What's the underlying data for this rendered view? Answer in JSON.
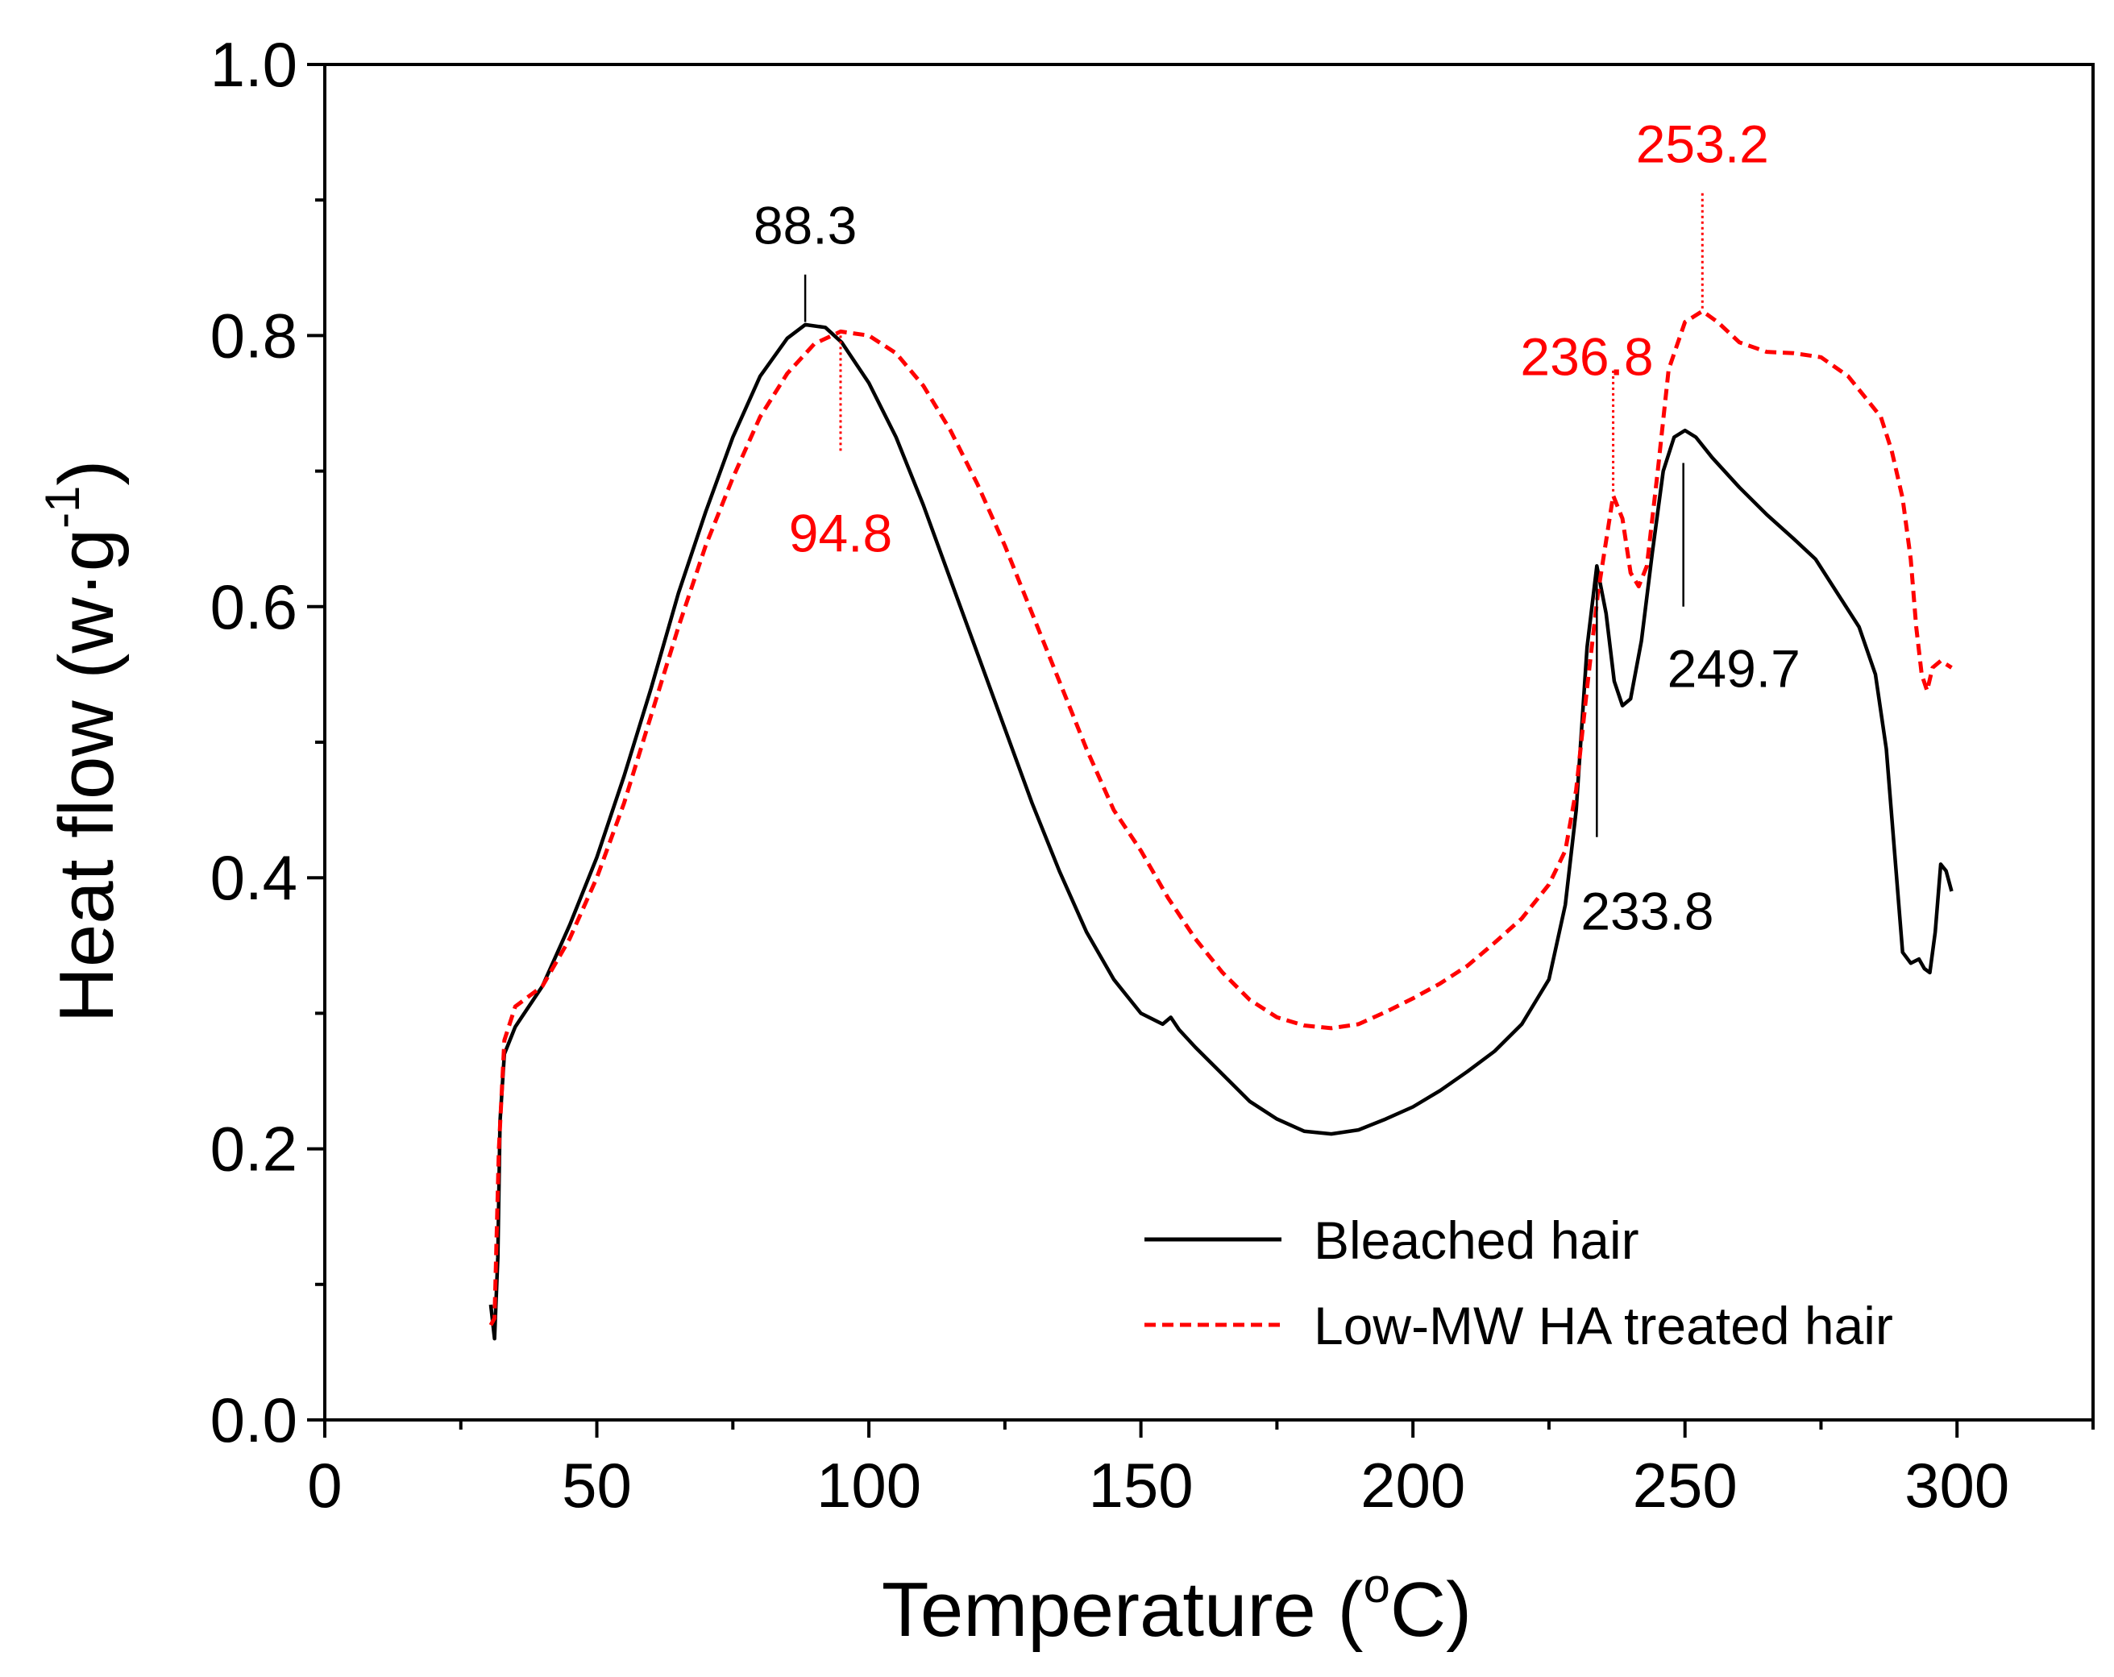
{
  "chart_data": {
    "type": "line",
    "title": "",
    "xlabel": "Temperature (",
    "xlabel_super": "o",
    "xlabel_tail": "C)",
    "ylabel": "Heat flow (w·g",
    "ylabel_super": "-1",
    "ylabel_tail": ")",
    "xlim": [
      0,
      325
    ],
    "ylim": [
      0,
      1.0
    ],
    "xticks": [
      0,
      50,
      100,
      150,
      200,
      250,
      300
    ],
    "xtick_labels": [
      "0",
      "50",
      "100",
      "150",
      "200",
      "250",
      "300"
    ],
    "yticks": [
      0,
      0.2,
      0.4,
      0.6,
      0.8,
      1.0
    ],
    "ytick_labels": [
      "0.0",
      "0.2",
      "0.4",
      "0.6",
      "0.8",
      "1.0"
    ],
    "grid": false,
    "legend_position": "bottom-right",
    "series": [
      {
        "name": "Bleached hair",
        "color": "#000000",
        "style": "solid",
        "points": [
          [
            30.5,
            0.085
          ],
          [
            31.2,
            0.06
          ],
          [
            31.8,
            0.12
          ],
          [
            32.2,
            0.22
          ],
          [
            33.0,
            0.27
          ],
          [
            35,
            0.29
          ],
          [
            40,
            0.32
          ],
          [
            45,
            0.365
          ],
          [
            50,
            0.415
          ],
          [
            55,
            0.475
          ],
          [
            60,
            0.54
          ],
          [
            65,
            0.61
          ],
          [
            70,
            0.67
          ],
          [
            75,
            0.725
          ],
          [
            80,
            0.77
          ],
          [
            85,
            0.798
          ],
          [
            88.3,
            0.808
          ],
          [
            92,
            0.806
          ],
          [
            95,
            0.795
          ],
          [
            100,
            0.765
          ],
          [
            105,
            0.725
          ],
          [
            110,
            0.675
          ],
          [
            115,
            0.62
          ],
          [
            120,
            0.565
          ],
          [
            125,
            0.51
          ],
          [
            130,
            0.455
          ],
          [
            135,
            0.405
          ],
          [
            140,
            0.36
          ],
          [
            145,
            0.325
          ],
          [
            150,
            0.3
          ],
          [
            154,
            0.292
          ],
          [
            155.5,
            0.297
          ],
          [
            157,
            0.288
          ],
          [
            160,
            0.275
          ],
          [
            165,
            0.255
          ],
          [
            170,
            0.235
          ],
          [
            175,
            0.222
          ],
          [
            180,
            0.213
          ],
          [
            185,
            0.211
          ],
          [
            190,
            0.214
          ],
          [
            195,
            0.222
          ],
          [
            200,
            0.231
          ],
          [
            205,
            0.243
          ],
          [
            210,
            0.257
          ],
          [
            215,
            0.272
          ],
          [
            220,
            0.292
          ],
          [
            225,
            0.325
          ],
          [
            228,
            0.38
          ],
          [
            230,
            0.45
          ],
          [
            232,
            0.57
          ],
          [
            233.8,
            0.63
          ],
          [
            235.5,
            0.595
          ],
          [
            237,
            0.545
          ],
          [
            238.5,
            0.527
          ],
          [
            240,
            0.532
          ],
          [
            242,
            0.575
          ],
          [
            244,
            0.64
          ],
          [
            246,
            0.7
          ],
          [
            248,
            0.725
          ],
          [
            250,
            0.73
          ],
          [
            252,
            0.725
          ],
          [
            255,
            0.71
          ],
          [
            260,
            0.688
          ],
          [
            265,
            0.668
          ],
          [
            270,
            0.65
          ],
          [
            274,
            0.635
          ],
          [
            278,
            0.61
          ],
          [
            282,
            0.585
          ],
          [
            285,
            0.55
          ],
          [
            287,
            0.495
          ],
          [
            288.5,
            0.42
          ],
          [
            290,
            0.345
          ],
          [
            291.5,
            0.337
          ],
          [
            293,
            0.34
          ],
          [
            294,
            0.333
          ],
          [
            295,
            0.33
          ],
          [
            296,
            0.36
          ],
          [
            297,
            0.41
          ],
          [
            298,
            0.405
          ],
          [
            299,
            0.39
          ]
        ]
      },
      {
        "name": "Low-MW HA treated hair",
        "color": "#ff0000",
        "style": "dashed",
        "points": [
          [
            30.5,
            0.07
          ],
          [
            31.2,
            0.075
          ],
          [
            32,
            0.2
          ],
          [
            33,
            0.28
          ],
          [
            35,
            0.305
          ],
          [
            40,
            0.32
          ],
          [
            45,
            0.355
          ],
          [
            50,
            0.4
          ],
          [
            55,
            0.455
          ],
          [
            60,
            0.52
          ],
          [
            65,
            0.585
          ],
          [
            70,
            0.645
          ],
          [
            75,
            0.695
          ],
          [
            80,
            0.74
          ],
          [
            85,
            0.772
          ],
          [
            90,
            0.794
          ],
          [
            94.8,
            0.803
          ],
          [
            100,
            0.8
          ],
          [
            105,
            0.787
          ],
          [
            110,
            0.763
          ],
          [
            115,
            0.73
          ],
          [
            120,
            0.69
          ],
          [
            125,
            0.645
          ],
          [
            130,
            0.595
          ],
          [
            135,
            0.545
          ],
          [
            140,
            0.495
          ],
          [
            145,
            0.45
          ],
          [
            150,
            0.42
          ],
          [
            155,
            0.385
          ],
          [
            160,
            0.355
          ],
          [
            165,
            0.33
          ],
          [
            170,
            0.31
          ],
          [
            175,
            0.297
          ],
          [
            180,
            0.291
          ],
          [
            185,
            0.289
          ],
          [
            190,
            0.292
          ],
          [
            195,
            0.301
          ],
          [
            200,
            0.311
          ],
          [
            205,
            0.322
          ],
          [
            210,
            0.335
          ],
          [
            215,
            0.352
          ],
          [
            220,
            0.37
          ],
          [
            225,
            0.395
          ],
          [
            228,
            0.42
          ],
          [
            230,
            0.465
          ],
          [
            232,
            0.54
          ],
          [
            234,
            0.61
          ],
          [
            236.8,
            0.682
          ],
          [
            238.5,
            0.665
          ],
          [
            240,
            0.625
          ],
          [
            241.5,
            0.615
          ],
          [
            243,
            0.63
          ],
          [
            245,
            0.7
          ],
          [
            247,
            0.775
          ],
          [
            250,
            0.81
          ],
          [
            253.2,
            0.818
          ],
          [
            256,
            0.81
          ],
          [
            260,
            0.795
          ],
          [
            265,
            0.788
          ],
          [
            270,
            0.787
          ],
          [
            275,
            0.784
          ],
          [
            280,
            0.77
          ],
          [
            283,
            0.755
          ],
          [
            286,
            0.74
          ],
          [
            288,
            0.715
          ],
          [
            290,
            0.68
          ],
          [
            291.5,
            0.635
          ],
          [
            292.5,
            0.585
          ],
          [
            293.5,
            0.55
          ],
          [
            294.5,
            0.538
          ],
          [
            295.5,
            0.555
          ],
          [
            297,
            0.56
          ],
          [
            299,
            0.555
          ]
        ]
      }
    ],
    "annotations": [
      {
        "text": "88.3",
        "color": "#000000",
        "x": 88.3,
        "marker_from": 0.81,
        "marker_to": 0.845,
        "marker_style": "solid",
        "label_y": 0.882,
        "anchor": "middle"
      },
      {
        "text": "94.8",
        "color": "#ff0000",
        "x": 94.8,
        "marker_from": 0.715,
        "marker_to": 0.8,
        "marker_style": "dotted",
        "label_y": 0.655,
        "anchor": "middle"
      },
      {
        "text": "236.8",
        "color": "#ff0000",
        "x": 236.8,
        "marker_from": 0.685,
        "marker_to": 0.775,
        "marker_style": "dotted",
        "label_y": 0.785,
        "anchor": "end"
      },
      {
        "text": "253.2",
        "color": "#ff0000",
        "x": 253.2,
        "marker_from": 0.82,
        "marker_to": 0.905,
        "marker_style": "dotted",
        "label_y": 0.942,
        "anchor": "middle"
      },
      {
        "text": "249.7",
        "color": "#000000",
        "x": 249.7,
        "marker_from": 0.6,
        "marker_to": 0.706,
        "marker_style": "solid",
        "label_y": 0.555,
        "anchor": "start"
      },
      {
        "text": "233.8",
        "color": "#000000",
        "x": 233.8,
        "marker_from": 0.43,
        "marker_to": 0.622,
        "marker_style": "solid",
        "label_y": 0.376,
        "anchor": "start"
      }
    ]
  }
}
